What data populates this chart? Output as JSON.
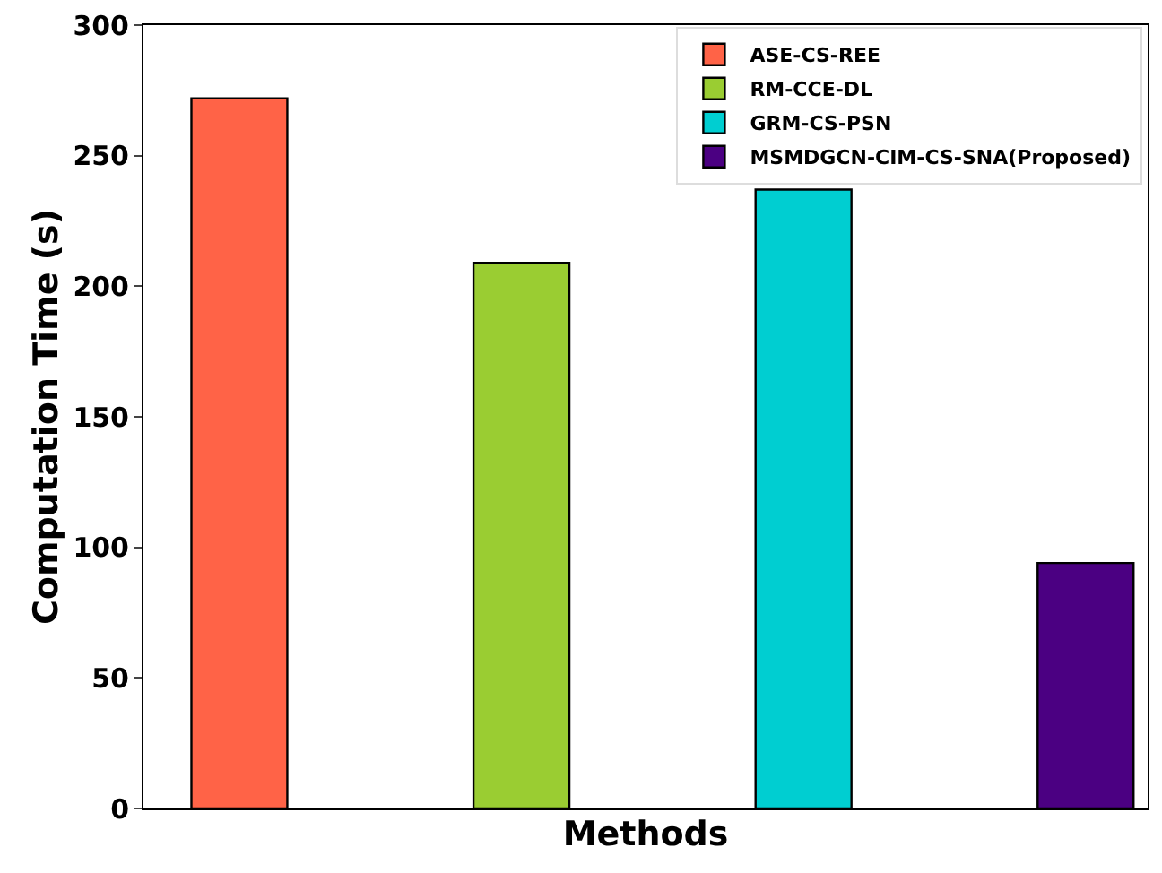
{
  "chart_data": {
    "type": "bar",
    "xlabel": "Methods",
    "ylabel": "Computation Time (s)",
    "categories": [
      null,
      null,
      null,
      null
    ],
    "series": [
      {
        "name": "ASE-CS-REE",
        "color": "#ff6347",
        "values": [
          272,
          null,
          null,
          null
        ]
      },
      {
        "name": "RM-CCE-DL",
        "color": "#9acd32",
        "values": [
          null,
          209,
          null,
          null
        ]
      },
      {
        "name": "GRM-CS-PSN",
        "color": "#00ced1",
        "values": [
          null,
          null,
          237,
          null
        ]
      },
      {
        "name": "MSMDGCN-CIM-CS-SNA(Proposed)",
        "color": "#4b0082",
        "values": [
          null,
          null,
          null,
          94
        ]
      }
    ],
    "ylim": [
      0,
      300
    ],
    "yticks": [
      0,
      50,
      100,
      150,
      200,
      250,
      300
    ],
    "grid": false,
    "legend": "top right"
  }
}
